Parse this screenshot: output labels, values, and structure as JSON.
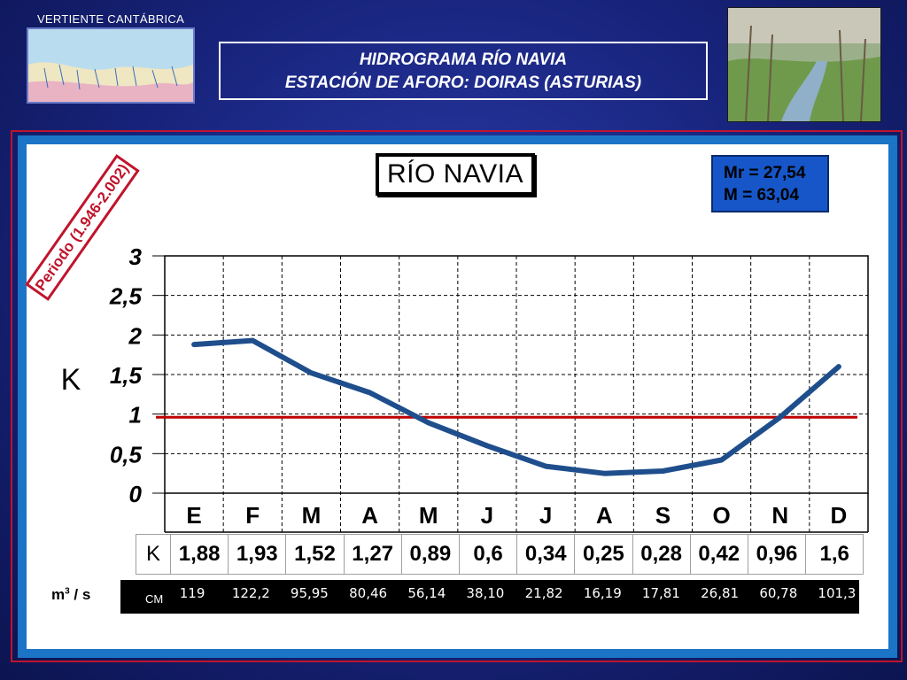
{
  "header": {
    "map_label": "VERTIENTE CANTÁBRICA",
    "title_line1": "HIDROGRAMA  RÍO  NAVIA",
    "title_line2": "ESTACIÓN DE AFORO:    DOIRAS (ASTURIAS)"
  },
  "chart": {
    "river_label": "RÍO NAVIA",
    "mr_text": "Mr = 27,54",
    "m_text": "M = 63,04",
    "periodo_text": "Periodo (1.946-2.002)",
    "units_label": "m",
    "units_sup": "3",
    "units_suffix": " / s",
    "cm_label": "CM"
  },
  "chart_data": {
    "type": "line",
    "ylabel": "K",
    "ylim": [
      0,
      3
    ],
    "yticks": [
      "0",
      "0,5",
      "1",
      "1,5",
      "2",
      "2,5",
      "3"
    ],
    "ytick_values": [
      0,
      0.5,
      1,
      1.5,
      2,
      2.5,
      3
    ],
    "categories": [
      "E",
      "F",
      "M",
      "A",
      "M",
      "J",
      "J",
      "A",
      "S",
      "O",
      "N",
      "D"
    ],
    "values": [
      1.88,
      1.93,
      1.52,
      1.27,
      0.89,
      0.6,
      0.34,
      0.25,
      0.28,
      0.42,
      0.96,
      1.6
    ],
    "k_row_label": "K",
    "k_labels": [
      "1,88",
      "1,93",
      "1,52",
      "1,27",
      "0,89",
      "0,6",
      "0,34",
      "0,25",
      "0,28",
      "0,42",
      "0,96",
      "1,6"
    ],
    "cm_values": [
      "119",
      "122,2",
      "95,95",
      "80,46",
      "56,14",
      "38,10",
      "21,82",
      "16,19",
      "17,81",
      "26,81",
      "60,78",
      "101,3"
    ],
    "reference_line": 0.96,
    "line_color": "#1f4e8c",
    "reference_color": "#c00000",
    "grid": true
  }
}
